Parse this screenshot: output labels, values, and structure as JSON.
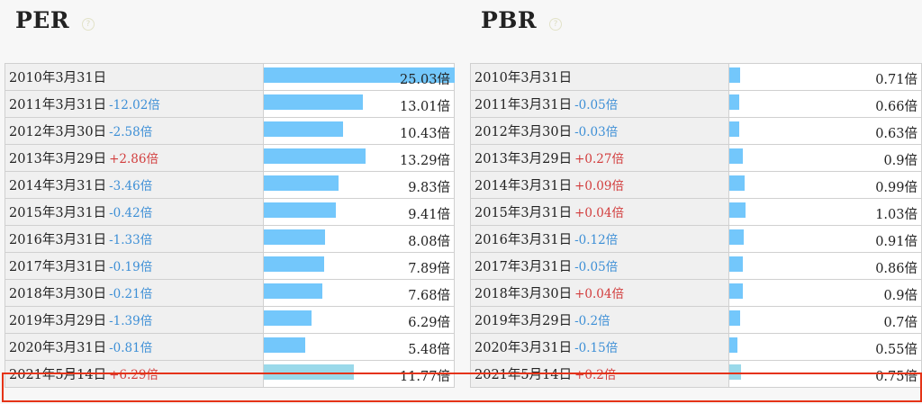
{
  "chart_data": [
    {
      "type": "bar",
      "title": "PER",
      "max_value": 25.03,
      "rows": [
        {
          "date": "2010年3月31日",
          "delta": "",
          "value": 25.03,
          "value_label": "25.03倍"
        },
        {
          "date": "2011年3月31日",
          "delta": "-12.02倍",
          "value": 13.01,
          "value_label": "13.01倍"
        },
        {
          "date": "2012年3月30日",
          "delta": "-2.58倍",
          "value": 10.43,
          "value_label": "10.43倍"
        },
        {
          "date": "2013年3月29日",
          "delta": "+2.86倍",
          "value": 13.29,
          "value_label": "13.29倍"
        },
        {
          "date": "2014年3月31日",
          "delta": "-3.46倍",
          "value": 9.83,
          "value_label": "9.83倍"
        },
        {
          "date": "2015年3月31日",
          "delta": "-0.42倍",
          "value": 9.41,
          "value_label": "9.41倍"
        },
        {
          "date": "2016年3月31日",
          "delta": "-1.33倍",
          "value": 8.08,
          "value_label": "8.08倍"
        },
        {
          "date": "2017年3月31日",
          "delta": "-0.19倍",
          "value": 7.89,
          "value_label": "7.89倍"
        },
        {
          "date": "2018年3月30日",
          "delta": "-0.21倍",
          "value": 7.68,
          "value_label": "7.68倍"
        },
        {
          "date": "2019年3月29日",
          "delta": "-1.39倍",
          "value": 6.29,
          "value_label": "6.29倍"
        },
        {
          "date": "2020年3月31日",
          "delta": "-0.81倍",
          "value": 5.48,
          "value_label": "5.48倍"
        },
        {
          "date": "2021年5月14日",
          "delta": "+6.29倍",
          "value": 11.77,
          "value_label": "11.77倍",
          "current": true
        }
      ]
    },
    {
      "type": "bar",
      "title": "PBR",
      "max_value": 25.03,
      "rows": [
        {
          "date": "2010年3月31日",
          "delta": "",
          "value": 0.71,
          "value_label": "0.71倍"
        },
        {
          "date": "2011年3月31日",
          "delta": "-0.05倍",
          "value": 0.66,
          "value_label": "0.66倍"
        },
        {
          "date": "2012年3月30日",
          "delta": "-0.03倍",
          "value": 0.63,
          "value_label": "0.63倍"
        },
        {
          "date": "2013年3月29日",
          "delta": "+0.27倍",
          "value": 0.9,
          "value_label": "0.9倍"
        },
        {
          "date": "2014年3月31日",
          "delta": "+0.09倍",
          "value": 0.99,
          "value_label": "0.99倍"
        },
        {
          "date": "2015年3月31日",
          "delta": "+0.04倍",
          "value": 1.03,
          "value_label": "1.03倍"
        },
        {
          "date": "2016年3月31日",
          "delta": "-0.12倍",
          "value": 0.91,
          "value_label": "0.91倍"
        },
        {
          "date": "2017年3月31日",
          "delta": "-0.05倍",
          "value": 0.86,
          "value_label": "0.86倍"
        },
        {
          "date": "2018年3月30日",
          "delta": "+0.04倍",
          "value": 0.9,
          "value_label": "0.9倍"
        },
        {
          "date": "2019年3月29日",
          "delta": "-0.2倍",
          "value": 0.7,
          "value_label": "0.7倍"
        },
        {
          "date": "2020年3月31日",
          "delta": "-0.15倍",
          "value": 0.55,
          "value_label": "0.55倍"
        },
        {
          "date": "2021年5月14日",
          "delta": "+0.2倍",
          "value": 0.75,
          "value_label": "0.75倍",
          "current": true
        }
      ]
    }
  ],
  "colors": {
    "bar": "#73c7fb",
    "bar_current": "#9ad9ea",
    "delta_negative": "#3d8fd6",
    "delta_positive": "#d23d3d",
    "highlight_border": "#e53317"
  },
  "help_icon_glyph": "?",
  "icons": {
    "help": "help-circle-icon"
  }
}
